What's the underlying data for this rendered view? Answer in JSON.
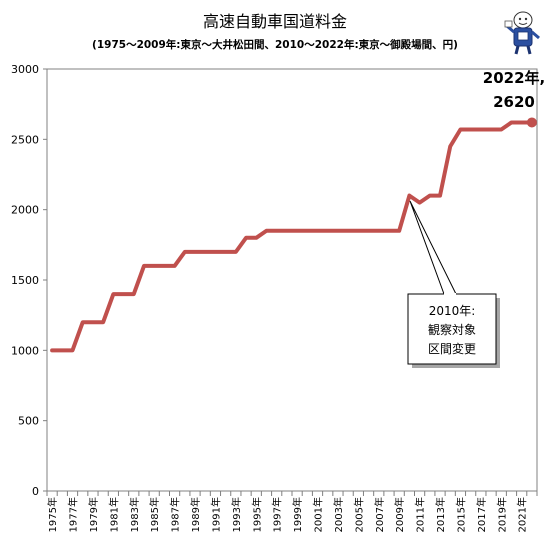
{
  "chart_data": {
    "type": "line",
    "title": "高速自動車国道料金",
    "subtitle": "(1975〜2009年:東京〜大井松田間、2010〜2022年:東京〜御殿場間、円)",
    "x": [
      "1975年",
      "1976年",
      "1977年",
      "1978年",
      "1979年",
      "1980年",
      "1981年",
      "1982年",
      "1983年",
      "1984年",
      "1985年",
      "1986年",
      "1987年",
      "1988年",
      "1989年",
      "1990年",
      "1991年",
      "1992年",
      "1993年",
      "1994年",
      "1995年",
      "1996年",
      "1997年",
      "1998年",
      "1999年",
      "2000年",
      "2001年",
      "2002年",
      "2003年",
      "2004年",
      "2005年",
      "2006年",
      "2007年",
      "2008年",
      "2009年",
      "2010年",
      "2011年",
      "2012年",
      "2013年",
      "2014年",
      "2015年",
      "2016年",
      "2017年",
      "2018年",
      "2019年",
      "2020年",
      "2021年",
      "2022年"
    ],
    "xtick_labels": [
      "1975年",
      "1977年",
      "1979年",
      "1981年",
      "1983年",
      "1985年",
      "1987年",
      "1989年",
      "1991年",
      "1993年",
      "1995年",
      "1997年",
      "1999年",
      "2001年",
      "2003年",
      "2005年",
      "2007年",
      "2009年",
      "2011年",
      "2013年",
      "2015年",
      "2017年",
      "2019年",
      "2021年"
    ],
    "series": [
      {
        "values": [
          1000,
          1000,
          1000,
          1200,
          1200,
          1200,
          1400,
          1400,
          1400,
          1600,
          1600,
          1600,
          1600,
          1700,
          1700,
          1700,
          1700,
          1700,
          1700,
          1800,
          1800,
          1850,
          1850,
          1850,
          1850,
          1850,
          1850,
          1850,
          1850,
          1850,
          1850,
          1850,
          1850,
          1850,
          1850,
          2100,
          2050,
          2100,
          2100,
          2450,
          2570,
          2570,
          2570,
          2570,
          2570,
          2620,
          2620,
          2620
        ],
        "color": "#c0504d"
      }
    ],
    "ylim": [
      0,
      3000
    ],
    "yticks": [
      "0",
      "500",
      "1000",
      "1500",
      "2000",
      "2500",
      "3000"
    ],
    "grid": false,
    "annotations": {
      "last_point": {
        "line1": "2022年,",
        "line2": "2620"
      },
      "callout": {
        "lines": [
          "2010年:",
          "観察対象",
          "区間変更"
        ]
      }
    }
  }
}
